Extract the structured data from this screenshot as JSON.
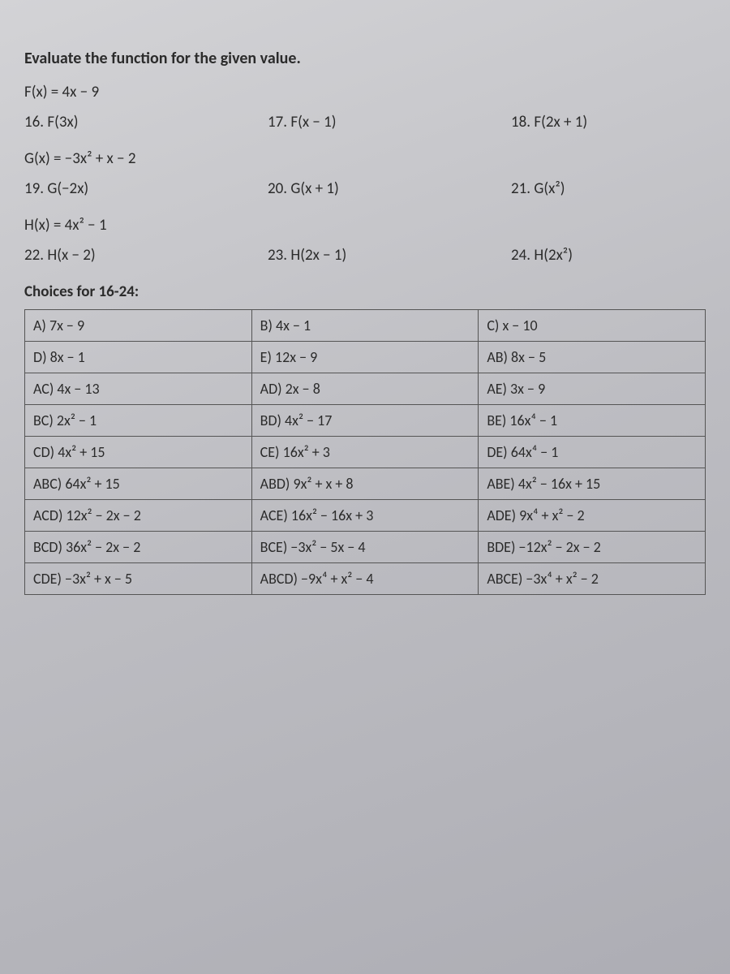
{
  "heading": "Evaluate the function for the given value.",
  "defF": "F(x) = 4x − 9",
  "rowF": [
    "16.   F(3x)",
    "17.   F(x − 1)",
    "18.   F(2x + 1)"
  ],
  "defG": "G(x) = −3x² + x − 2",
  "rowG": [
    "19.   G(−2x)",
    "20.   G(x + 1)",
    "21.   G(x²)"
  ],
  "defH": "H(x) = 4x² − 1",
  "rowH": [
    "22.   H(x − 2)",
    "23.   H(2x − 1)",
    "24.   H(2x²)"
  ],
  "choicesLabel": "Choices for 16-24:",
  "table": [
    [
      "A) 7x − 9",
      "B) 4x − 1",
      "C) x − 10"
    ],
    [
      "D) 8x − 1",
      "E) 12x − 9",
      "AB) 8x − 5"
    ],
    [
      "AC) 4x − 13",
      "AD) 2x − 8",
      "AE) 3x − 9"
    ],
    [
      "BC) 2x² − 1",
      "BD) 4x² − 17",
      "BE) 16x⁴ − 1"
    ],
    [
      "CD) 4x² + 15",
      "CE) 16x² + 3",
      "DE) 64x⁴ − 1"
    ],
    [
      "ABC) 64x² + 15",
      "ABD) 9x² + x + 8",
      "ABE) 4x² − 16x + 15"
    ],
    [
      "ACD) 12x² − 2x − 2",
      "ACE) 16x² − 16x + 3",
      "ADE) 9x⁴ + x² − 2"
    ],
    [
      "BCD) 36x² − 2x − 2",
      "BCE) −3x² − 5x − 4",
      "BDE) −12x² − 2x − 2"
    ],
    [
      "CDE) −3x² + x − 5",
      "ABCD) −9x⁴ + x² − 4",
      "ABCE) −3x⁴ + x² − 2"
    ]
  ]
}
